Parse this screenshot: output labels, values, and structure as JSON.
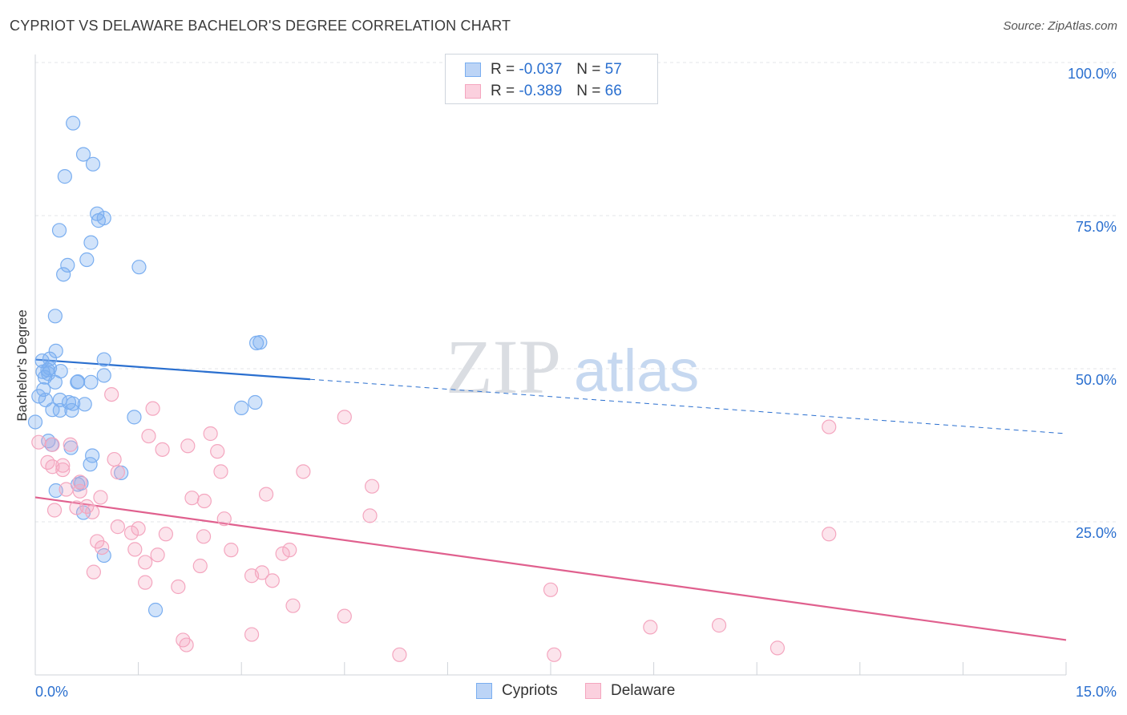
{
  "title": "CYPRIOT VS DELAWARE BACHELOR'S DEGREE CORRELATION CHART",
  "source": "Source: ZipAtlas.com",
  "watermark": {
    "zip": "ZIP",
    "atlas": "atlas"
  },
  "legend": {
    "r_label": "R =",
    "n_label": "N =",
    "series": [
      {
        "name": "Cypriots",
        "r": "-0.037",
        "n": "57"
      },
      {
        "name": "Delaware",
        "r": "-0.389",
        "n": "66"
      }
    ]
  },
  "chart_data": {
    "type": "scatter",
    "title": "CYPRIOT VS DELAWARE BACHELOR'S DEGREE CORRELATION CHART",
    "xlabel": "",
    "ylabel": "Bachelor's Degree",
    "xlim": [
      0,
      15
    ],
    "ylim": [
      0,
      100
    ],
    "x_tick_labels": [
      "0.0%",
      "15.0%"
    ],
    "y_ticks": [
      25,
      50,
      75,
      100
    ],
    "y_tick_labels": [
      "25.0%",
      "50.0%",
      "75.0%",
      "100.0%"
    ],
    "colors": {
      "Cypriots": "#7aaef0",
      "Cypriots_line": "#2a6fcf",
      "Delaware": "#f4a6bf",
      "Delaware_line": "#e0608e",
      "tick_label": "#2a6fcf"
    },
    "series": [
      {
        "name": "Cypriots",
        "points": [
          [
            0.55,
            90.1
          ],
          [
            0.7,
            85
          ],
          [
            0.84,
            83.4
          ],
          [
            0.43,
            81.4
          ],
          [
            0.9,
            75.3
          ],
          [
            1.0,
            74.6
          ],
          [
            0.92,
            74.2
          ],
          [
            0.35,
            72.6
          ],
          [
            0.81,
            70.6
          ],
          [
            0.75,
            67.8
          ],
          [
            0.47,
            66.9
          ],
          [
            1.51,
            66.6
          ],
          [
            0.41,
            65.4
          ],
          [
            0.29,
            58.6
          ],
          [
            3.22,
            54.2
          ],
          [
            3.27,
            54.3
          ],
          [
            0.3,
            52.9
          ],
          [
            0.21,
            51.6
          ],
          [
            0.1,
            51.3
          ],
          [
            1.0,
            51.5
          ],
          [
            0.11,
            49.5
          ],
          [
            0.19,
            49.2
          ],
          [
            0.21,
            50.1
          ],
          [
            1.0,
            48.9
          ],
          [
            0.61,
            47.8
          ],
          [
            0.81,
            47.8
          ],
          [
            0.29,
            47.8
          ],
          [
            0.12,
            46.6
          ],
          [
            0.05,
            45.5
          ],
          [
            0.15,
            44.9
          ],
          [
            0.36,
            44.9
          ],
          [
            0.49,
            44.5
          ],
          [
            0.55,
            44.3
          ],
          [
            0.72,
            44.2
          ],
          [
            3.2,
            44.5
          ],
          [
            0.25,
            43.3
          ],
          [
            0.36,
            43.2
          ],
          [
            0.53,
            43.2
          ],
          [
            3.0,
            43.6
          ],
          [
            1.44,
            42.1
          ],
          [
            0.0,
            41.3
          ],
          [
            0.24,
            37.6
          ],
          [
            0.52,
            37.1
          ],
          [
            0.83,
            35.8
          ],
          [
            0.8,
            34.4
          ],
          [
            1.25,
            33.0
          ],
          [
            0.67,
            31.3
          ],
          [
            0.62,
            31.1
          ],
          [
            0.3,
            30.1
          ],
          [
            0.7,
            26.5
          ],
          [
            1.0,
            19.5
          ],
          [
            1.75,
            10.6
          ],
          [
            0.19,
            38.2
          ],
          [
            0.37,
            49.6
          ],
          [
            0.18,
            49.8
          ],
          [
            0.14,
            48.6
          ],
          [
            0.62,
            47.9
          ]
        ],
        "trend": {
          "x": [
            0,
            15
          ],
          "y": [
            51.5,
            39.4
          ],
          "solid_until_x": 4.0
        }
      },
      {
        "name": "Delaware",
        "points": [
          [
            1.11,
            45.8
          ],
          [
            1.71,
            43.5
          ],
          [
            4.5,
            42.1
          ],
          [
            11.55,
            40.5
          ],
          [
            1.65,
            39.0
          ],
          [
            2.55,
            39.4
          ],
          [
            0.05,
            38.0
          ],
          [
            0.25,
            37.6
          ],
          [
            0.51,
            37.6
          ],
          [
            1.85,
            36.8
          ],
          [
            2.22,
            37.4
          ],
          [
            2.65,
            36.5
          ],
          [
            0.18,
            34.7
          ],
          [
            0.25,
            34.0
          ],
          [
            0.4,
            33.5
          ],
          [
            0.4,
            34.2
          ],
          [
            1.15,
            35.2
          ],
          [
            1.2,
            33.1
          ],
          [
            2.7,
            33.2
          ],
          [
            3.9,
            33.2
          ],
          [
            0.65,
            31.5
          ],
          [
            0.45,
            30.3
          ],
          [
            0.65,
            30.0
          ],
          [
            4.9,
            30.8
          ],
          [
            0.95,
            29.0
          ],
          [
            2.28,
            28.9
          ],
          [
            2.46,
            28.4
          ],
          [
            3.36,
            29.5
          ],
          [
            0.28,
            26.9
          ],
          [
            0.6,
            27.3
          ],
          [
            0.75,
            27.5
          ],
          [
            0.83,
            26.6
          ],
          [
            4.87,
            26.0
          ],
          [
            2.75,
            25.5
          ],
          [
            1.2,
            24.2
          ],
          [
            1.5,
            23.9
          ],
          [
            1.4,
            23.2
          ],
          [
            1.9,
            23.0
          ],
          [
            2.45,
            22.6
          ],
          [
            11.55,
            23.0
          ],
          [
            0.9,
            21.8
          ],
          [
            0.97,
            20.8
          ],
          [
            1.45,
            20.5
          ],
          [
            1.78,
            19.6
          ],
          [
            2.85,
            20.4
          ],
          [
            3.6,
            19.8
          ],
          [
            3.7,
            20.4
          ],
          [
            1.6,
            18.4
          ],
          [
            2.4,
            17.8
          ],
          [
            0.85,
            16.8
          ],
          [
            3.15,
            16.2
          ],
          [
            3.3,
            16.7
          ],
          [
            3.45,
            15.4
          ],
          [
            1.6,
            15.1
          ],
          [
            2.08,
            14.4
          ],
          [
            7.5,
            13.9
          ],
          [
            3.75,
            11.3
          ],
          [
            4.5,
            9.6
          ],
          [
            8.95,
            7.8
          ],
          [
            9.95,
            8.1
          ],
          [
            2.15,
            5.7
          ],
          [
            2.2,
            4.9
          ],
          [
            3.15,
            6.6
          ],
          [
            5.3,
            3.3
          ],
          [
            7.55,
            3.3
          ],
          [
            10.8,
            4.4
          ]
        ],
        "trend": {
          "x": [
            0,
            15
          ],
          "y": [
            29.0,
            5.7
          ],
          "solid_until_x": 15
        }
      }
    ]
  }
}
